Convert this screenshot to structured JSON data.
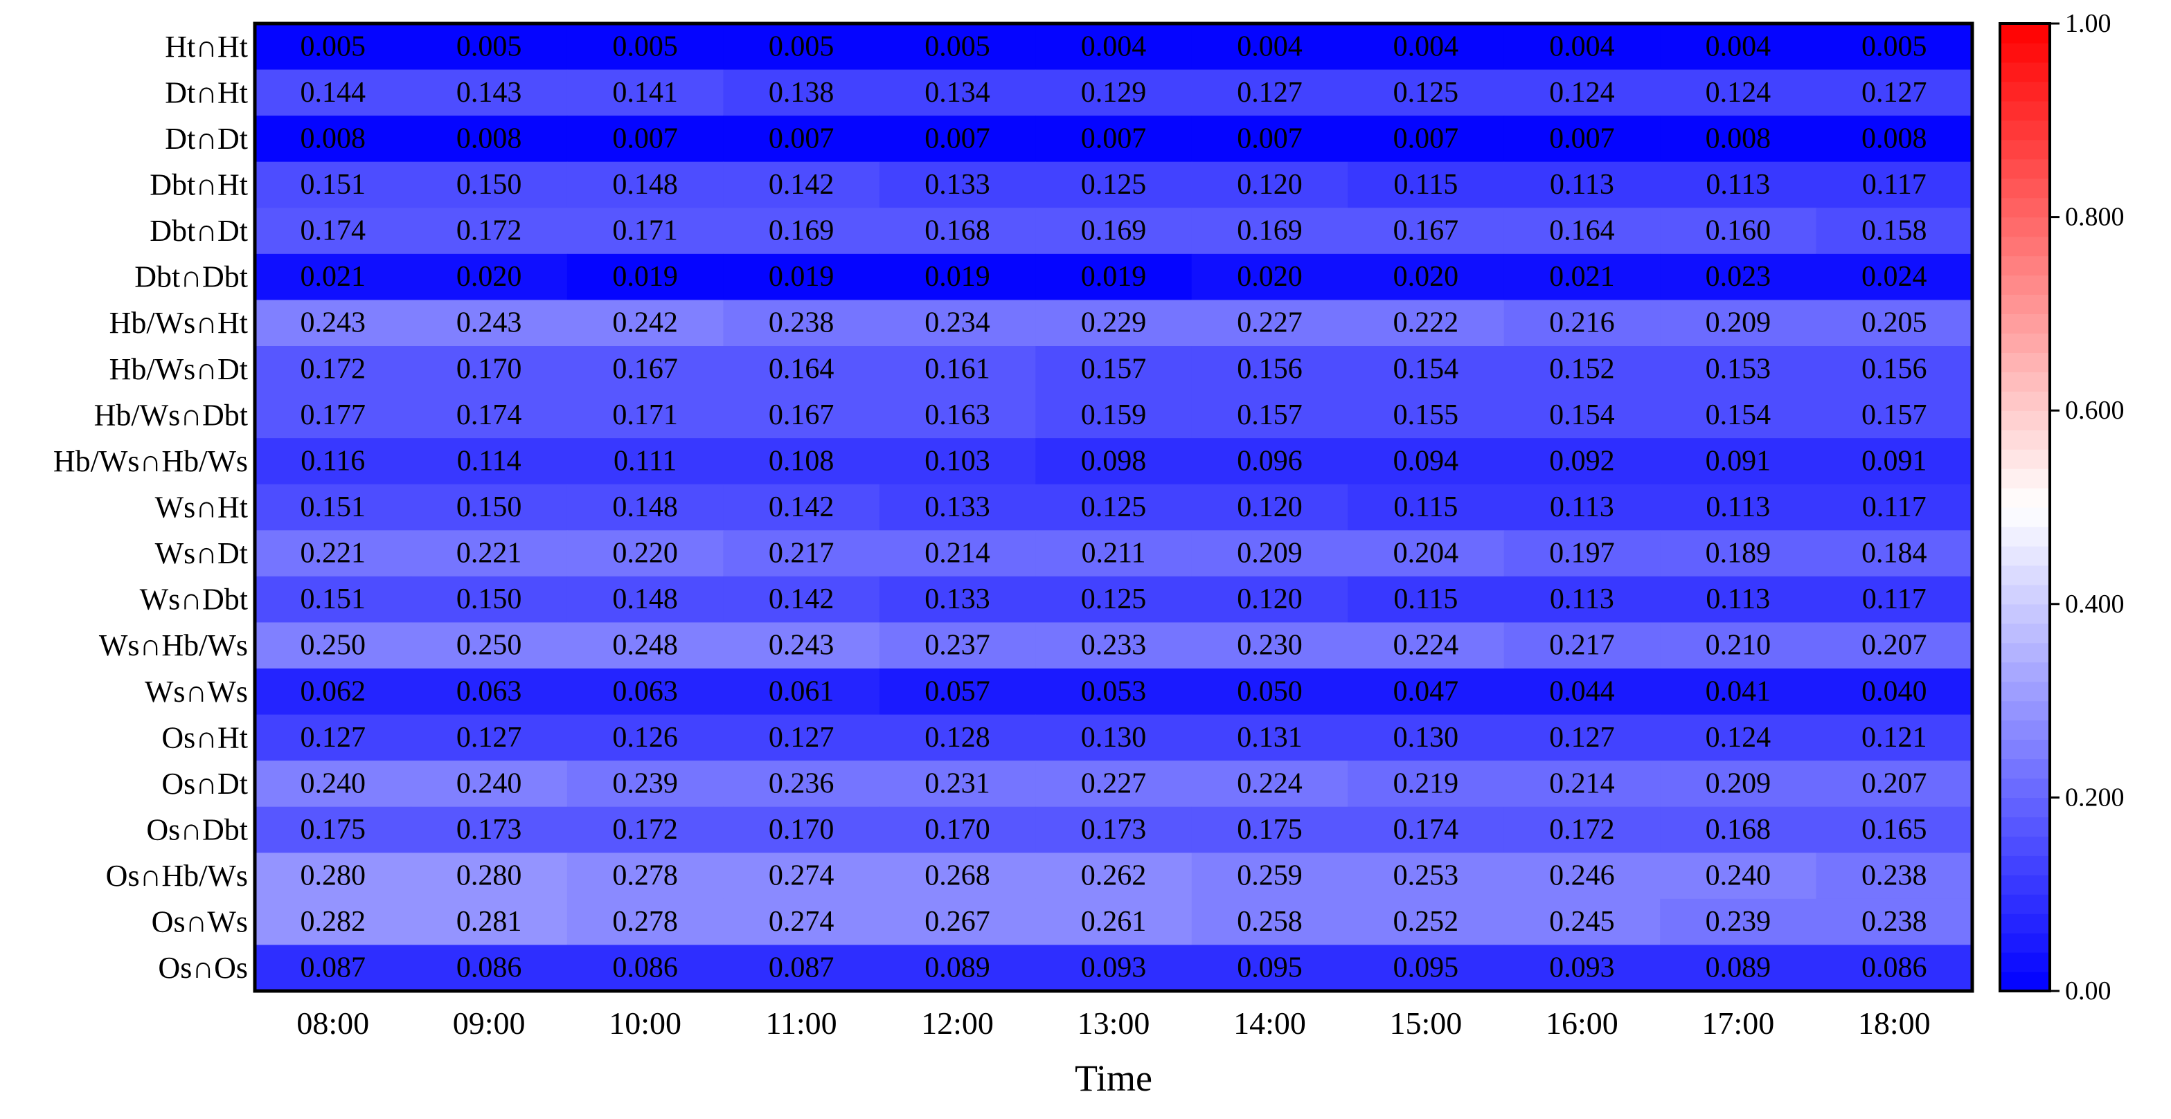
{
  "chart_data": {
    "type": "heatmap",
    "xlabel": "Time",
    "x": [
      "08:00",
      "09:00",
      "10:00",
      "11:00",
      "12:00",
      "13:00",
      "14:00",
      "15:00",
      "16:00",
      "17:00",
      "18:00"
    ],
    "y": [
      "Ht∩Ht",
      "Dt∩Ht",
      "Dt∩Dt",
      "Dbt∩Ht",
      "Dbt∩Dt",
      "Dbt∩Dbt",
      "Hb/Ws∩Ht",
      "Hb/Ws∩Dt",
      "Hb/Ws∩Dbt",
      "Hb/Ws∩Hb/Ws",
      "Ws∩Ht",
      "Ws∩Dt",
      "Ws∩Dbt",
      "Ws∩Hb/Ws",
      "Ws∩Ws",
      "Os∩Ht",
      "Os∩Dt",
      "Os∩Dbt",
      "Os∩Hb/Ws",
      "Os∩Ws",
      "Os∩Os"
    ],
    "values": [
      [
        "0.005",
        "0.005",
        "0.005",
        "0.005",
        "0.005",
        "0.004",
        "0.004",
        "0.004",
        "0.004",
        "0.004",
        "0.005"
      ],
      [
        "0.144",
        "0.143",
        "0.141",
        "0.138",
        "0.134",
        "0.129",
        "0.127",
        "0.125",
        "0.124",
        "0.124",
        "0.127"
      ],
      [
        "0.008",
        "0.008",
        "0.007",
        "0.007",
        "0.007",
        "0.007",
        "0.007",
        "0.007",
        "0.007",
        "0.008",
        "0.008"
      ],
      [
        "0.151",
        "0.150",
        "0.148",
        "0.142",
        "0.133",
        "0.125",
        "0.120",
        "0.115",
        "0.113",
        "0.113",
        "0.117"
      ],
      [
        "0.174",
        "0.172",
        "0.171",
        "0.169",
        "0.168",
        "0.169",
        "0.169",
        "0.167",
        "0.164",
        "0.160",
        "0.158"
      ],
      [
        "0.021",
        "0.020",
        "0.019",
        "0.019",
        "0.019",
        "0.019",
        "0.020",
        "0.020",
        "0.021",
        "0.023",
        "0.024"
      ],
      [
        "0.243",
        "0.243",
        "0.242",
        "0.238",
        "0.234",
        "0.229",
        "0.227",
        "0.222",
        "0.216",
        "0.209",
        "0.205"
      ],
      [
        "0.172",
        "0.170",
        "0.167",
        "0.164",
        "0.161",
        "0.157",
        "0.156",
        "0.154",
        "0.152",
        "0.153",
        "0.156"
      ],
      [
        "0.177",
        "0.174",
        "0.171",
        "0.167",
        "0.163",
        "0.159",
        "0.157",
        "0.155",
        "0.154",
        "0.154",
        "0.157"
      ],
      [
        "0.116",
        "0.114",
        "0.111",
        "0.108",
        "0.103",
        "0.098",
        "0.096",
        "0.094",
        "0.092",
        "0.091",
        "0.091"
      ],
      [
        "0.151",
        "0.150",
        "0.148",
        "0.142",
        "0.133",
        "0.125",
        "0.120",
        "0.115",
        "0.113",
        "0.113",
        "0.117"
      ],
      [
        "0.221",
        "0.221",
        "0.220",
        "0.217",
        "0.214",
        "0.211",
        "0.209",
        "0.204",
        "0.197",
        "0.189",
        "0.184"
      ],
      [
        "0.151",
        "0.150",
        "0.148",
        "0.142",
        "0.133",
        "0.125",
        "0.120",
        "0.115",
        "0.113",
        "0.113",
        "0.117"
      ],
      [
        "0.250",
        "0.250",
        "0.248",
        "0.243",
        "0.237",
        "0.233",
        "0.230",
        "0.224",
        "0.217",
        "0.210",
        "0.207"
      ],
      [
        "0.062",
        "0.063",
        "0.063",
        "0.061",
        "0.057",
        "0.053",
        "0.050",
        "0.047",
        "0.044",
        "0.041",
        "0.040"
      ],
      [
        "0.127",
        "0.127",
        "0.126",
        "0.127",
        "0.128",
        "0.130",
        "0.131",
        "0.130",
        "0.127",
        "0.124",
        "0.121"
      ],
      [
        "0.240",
        "0.240",
        "0.239",
        "0.236",
        "0.231",
        "0.227",
        "0.224",
        "0.219",
        "0.214",
        "0.209",
        "0.207"
      ],
      [
        "0.175",
        "0.173",
        "0.172",
        "0.170",
        "0.170",
        "0.173",
        "0.175",
        "0.174",
        "0.172",
        "0.168",
        "0.165"
      ],
      [
        "0.280",
        "0.280",
        "0.278",
        "0.274",
        "0.268",
        "0.262",
        "0.259",
        "0.253",
        "0.246",
        "0.240",
        "0.238"
      ],
      [
        "0.282",
        "0.281",
        "0.278",
        "0.274",
        "0.267",
        "0.261",
        "0.258",
        "0.252",
        "0.245",
        "0.239",
        "0.238"
      ],
      [
        "0.087",
        "0.086",
        "0.086",
        "0.087",
        "0.089",
        "0.093",
        "0.095",
        "0.095",
        "0.093",
        "0.089",
        "0.086"
      ]
    ],
    "colorbar": {
      "min": 0,
      "max": 1,
      "ticks": [
        "0.00",
        "0.200",
        "0.400",
        "0.600",
        "0.800",
        "1.00"
      ],
      "colormap": [
        "#0000ff",
        "#ffffff",
        "#ff0000"
      ],
      "levels": 50
    }
  }
}
